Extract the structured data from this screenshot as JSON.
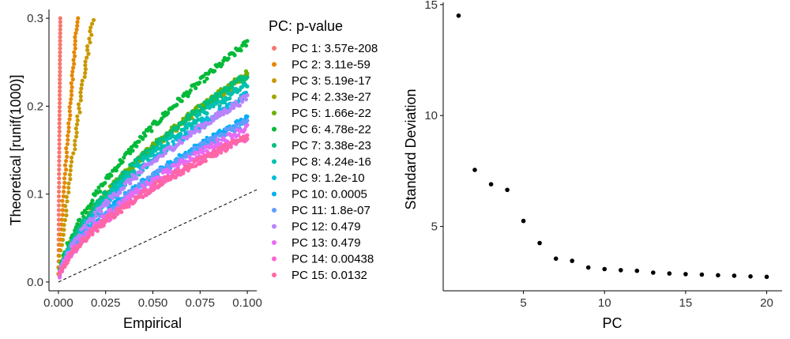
{
  "chart_data": [
    {
      "type": "scatter",
      "title": "",
      "xlabel": "Empirical",
      "ylabel": "Theoretical [runif(1000)]",
      "xlim": [
        -0.005,
        0.105
      ],
      "ylim": [
        -0.01,
        0.31
      ],
      "xticks": [
        "0.000",
        "0.025",
        "0.050",
        "0.075",
        "0.100"
      ],
      "xtick_values": [
        0,
        0.025,
        0.05,
        0.075,
        0.1
      ],
      "yticks": [
        "0.0",
        "0.1",
        "0.2",
        "0.3"
      ],
      "ytick_values": [
        0,
        0.1,
        0.2,
        0.3
      ],
      "reference_line": {
        "slope": 1,
        "intercept": 0,
        "style": "dashed"
      },
      "legend": {
        "title": "PC: p-value",
        "placement": "right",
        "items": [
          "PC 1: 3.57e-208",
          "PC 2: 3.11e-59",
          "PC 3: 5.19e-17",
          "PC 4: 2.33e-27",
          "PC 5: 1.66e-22",
          "PC 6: 4.78e-22",
          "PC 7: 3.38e-23",
          "PC 8: 4.24e-16",
          "PC 9: 1.2e-10",
          "PC 10: 0.0005",
          "PC 11: 1.8e-07",
          "PC 12: 0.479",
          "PC 13: 0.479",
          "PC 14: 0.00438",
          "PC 15: 0.0132"
        ]
      },
      "series": [
        {
          "color": "#F8766D",
          "end_x": 0.001,
          "end_y": 0.3
        },
        {
          "color": "#E58700",
          "end_x": 0.01,
          "end_y": 0.3
        },
        {
          "color": "#C99800",
          "end_x": 0.018,
          "end_y": 0.298
        },
        {
          "color": "#A3A500",
          "end_x": 0.1,
          "end_y": 0.235
        },
        {
          "color": "#6BB100",
          "end_x": 0.1,
          "end_y": 0.237
        },
        {
          "color": "#00BA38",
          "end_x": 0.1,
          "end_y": 0.272
        },
        {
          "color": "#00BF7D",
          "end_x": 0.1,
          "end_y": 0.236
        },
        {
          "color": "#00C0AF",
          "end_x": 0.1,
          "end_y": 0.225
        },
        {
          "color": "#00BCD8",
          "end_x": 0.1,
          "end_y": 0.213
        },
        {
          "color": "#00B0F6",
          "end_x": 0.1,
          "end_y": 0.186
        },
        {
          "color": "#619CFF",
          "end_x": 0.1,
          "end_y": 0.183
        },
        {
          "color": "#B983FF",
          "end_x": 0.1,
          "end_y": 0.21
        },
        {
          "color": "#E76BF3",
          "end_x": 0.1,
          "end_y": 0.176
        },
        {
          "color": "#FD61D1",
          "end_x": 0.1,
          "end_y": 0.165
        },
        {
          "color": "#FF67A4",
          "end_x": 0.1,
          "end_y": 0.165
        }
      ]
    },
    {
      "type": "scatter",
      "title": "",
      "xlabel": "PC",
      "ylabel": "Standard Deviation",
      "xlim": [
        0.05,
        20.95
      ],
      "ylim": [
        2.1,
        15.1
      ],
      "xticks": [
        "5",
        "10",
        "15",
        "20"
      ],
      "xtick_values": [
        5,
        10,
        15,
        20
      ],
      "yticks": [
        "5",
        "10",
        "15"
      ],
      "ytick_values": [
        5,
        10,
        15
      ],
      "color": "#000000",
      "x": [
        1,
        2,
        3,
        4,
        5,
        6,
        7,
        8,
        9,
        10,
        11,
        12,
        13,
        14,
        15,
        16,
        17,
        18,
        19,
        20
      ],
      "y": [
        14.5,
        7.55,
        6.9,
        6.65,
        5.25,
        4.25,
        3.55,
        3.45,
        3.15,
        3.08,
        3.03,
        3.0,
        2.92,
        2.88,
        2.85,
        2.83,
        2.8,
        2.78,
        2.75,
        2.73
      ]
    }
  ]
}
